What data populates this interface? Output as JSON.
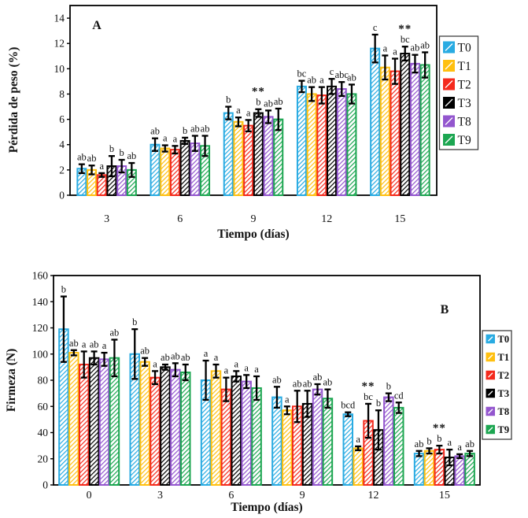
{
  "figure": {
    "background": "#ffffff",
    "axis_color": "#000000",
    "error_bar_color": "#000000",
    "significance_color": "#1a1a1a"
  },
  "chart_data": [
    {
      "type": "bar",
      "panel_label": "A",
      "xlabel": "Tiempo (días)",
      "ylabel": "Pérdida de peso (%)",
      "ylim": [
        0,
        15
      ],
      "yticks": [
        0,
        2,
        4,
        6,
        8,
        10,
        12,
        14
      ],
      "categories": [
        "3",
        "6",
        "9",
        "12",
        "15"
      ],
      "grid": false,
      "legend_position": "right-outside",
      "series": [
        {
          "name": "T0",
          "color": "#29ABE2",
          "values": [
            2.1,
            4.0,
            6.5,
            8.6,
            11.6
          ],
          "errors": [
            0.35,
            0.5,
            0.5,
            0.45,
            1.1
          ],
          "letters": [
            "ab",
            "ab",
            "b",
            "bc",
            "c"
          ]
        },
        {
          "name": "T1",
          "color": "#FFC010",
          "values": [
            2.0,
            3.7,
            5.8,
            8.0,
            10.1
          ],
          "errors": [
            0.35,
            0.25,
            0.35,
            0.55,
            0.95
          ],
          "letters": [
            "ab",
            "a",
            "a",
            "ab",
            "a"
          ]
        },
        {
          "name": "T2",
          "color": "#F42A1D",
          "values": [
            1.6,
            3.6,
            5.5,
            7.9,
            9.8
          ],
          "errors": [
            0.15,
            0.3,
            0.45,
            0.65,
            1.0
          ],
          "letters": [
            "a",
            "a",
            "a",
            "a",
            "a"
          ]
        },
        {
          "name": "T3",
          "color": "#000000",
          "values": [
            2.3,
            4.3,
            6.5,
            8.6,
            11.2
          ],
          "errors": [
            0.8,
            0.25,
            0.3,
            0.6,
            0.55
          ],
          "letters": [
            "b",
            "b",
            "b",
            "c",
            "bc"
          ]
        },
        {
          "name": "T8",
          "color": "#9356CE",
          "values": [
            2.3,
            4.1,
            6.2,
            8.4,
            10.4
          ],
          "errors": [
            0.5,
            0.6,
            0.5,
            0.55,
            0.7
          ],
          "letters": [
            "b",
            "ab",
            "ab",
            "abc",
            "ab"
          ]
        },
        {
          "name": "T9",
          "color": "#1CA651",
          "values": [
            2.0,
            3.9,
            6.0,
            8.0,
            10.3
          ],
          "errors": [
            0.55,
            0.8,
            0.85,
            0.75,
            1.0
          ],
          "letters": [
            "ab",
            "ab",
            "ab",
            "ab",
            "ab"
          ]
        }
      ],
      "significance_marks": [
        {
          "label": "**",
          "category": "9",
          "series": "T3"
        },
        {
          "label": "**",
          "category": "15",
          "series": "T3"
        }
      ]
    },
    {
      "type": "bar",
      "panel_label": "B",
      "xlabel": "Tiempo (días)",
      "ylabel": "Firmeza (N)",
      "ylim": [
        0,
        160
      ],
      "yticks": [
        0,
        20,
        40,
        60,
        80,
        100,
        120,
        140,
        160
      ],
      "categories": [
        "0",
        "3",
        "6",
        "9",
        "12",
        "15"
      ],
      "grid": false,
      "legend_position": "right-outside",
      "series": [
        {
          "name": "T0",
          "color": "#29ABE2",
          "values": [
            119,
            100,
            80,
            67,
            54,
            24
          ],
          "errors": [
            25,
            19,
            15,
            8,
            1.5,
            2
          ],
          "letters": [
            "b",
            "b",
            "a",
            "ab",
            "bcd",
            "ab"
          ]
        },
        {
          "name": "T1",
          "color": "#FFC010",
          "values": [
            101,
            94,
            87,
            57,
            28,
            26
          ],
          "errors": [
            2,
            3,
            5,
            3,
            1.5,
            2
          ],
          "letters": [
            "ab",
            "ab",
            "a",
            "a",
            "a",
            "b"
          ]
        },
        {
          "name": "T2",
          "color": "#F42A1D",
          "values": [
            92,
            82,
            73,
            60,
            49,
            27
          ],
          "errors": [
            10,
            5,
            9,
            12,
            13,
            3
          ],
          "letters": [
            "a",
            "a",
            "a",
            "ab",
            "bc",
            "b"
          ]
        },
        {
          "name": "T3",
          "color": "#000000",
          "values": [
            97,
            90,
            83,
            62,
            42,
            21
          ],
          "errors": [
            5,
            2,
            4,
            10,
            15,
            6
          ],
          "letters": [
            "ab",
            "ab",
            "a",
            "ab",
            "b",
            "a"
          ]
        },
        {
          "name": "T8",
          "color": "#9356CE",
          "values": [
            96,
            88,
            79,
            73,
            67,
            22
          ],
          "errors": [
            5,
            5,
            5,
            4,
            3,
            1.5
          ],
          "letters": [
            "a",
            "ab",
            "a",
            "ab",
            "b",
            "a"
          ]
        },
        {
          "name": "T9",
          "color": "#1CA651",
          "values": [
            97,
            86,
            74,
            66,
            59,
            24
          ],
          "errors": [
            14,
            6,
            9,
            7,
            4,
            2
          ],
          "letters": [
            "ab",
            "ab",
            "a",
            "ab",
            "cd",
            "ab"
          ]
        }
      ],
      "significance_marks": [
        {
          "label": "**",
          "category": "12",
          "series": "T2"
        },
        {
          "label": "**",
          "category": "15",
          "series": "T2"
        }
      ]
    }
  ]
}
